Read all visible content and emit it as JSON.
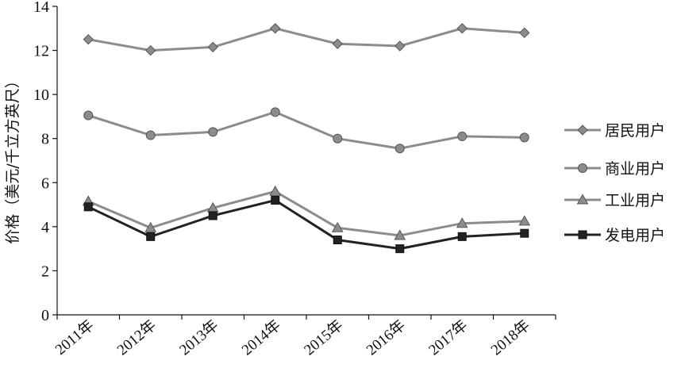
{
  "chart_data": {
    "type": "line",
    "ylabel": "价格（美元/千立方英尺）",
    "xlabel": "",
    "ylim": [
      0,
      14
    ],
    "yticks": [
      0,
      2,
      4,
      6,
      8,
      10,
      12,
      14
    ],
    "categories": [
      "2011年",
      "2012年",
      "2013年",
      "2014年",
      "2015年",
      "2016年",
      "2017年",
      "2018年"
    ],
    "grid": false,
    "legend_position": "right",
    "series": [
      {
        "name": "居民用户",
        "marker": "diamond",
        "color": "#8c8c8c",
        "values": [
          12.5,
          12.0,
          12.15,
          13.0,
          12.3,
          12.2,
          13.0,
          12.8
        ]
      },
      {
        "name": "商业用户",
        "marker": "circle",
        "color": "#8c8c8c",
        "values": [
          9.05,
          8.15,
          8.3,
          9.2,
          8.0,
          7.55,
          8.1,
          8.05
        ]
      },
      {
        "name": "工业用户",
        "marker": "triangle",
        "color": "#8c8c8c",
        "values": [
          5.15,
          3.95,
          4.85,
          5.6,
          3.95,
          3.6,
          4.15,
          4.25
        ]
      },
      {
        "name": "发电用户",
        "marker": "square",
        "color": "#222222",
        "values": [
          4.9,
          3.55,
          4.5,
          5.2,
          3.4,
          3.0,
          3.55,
          3.7
        ]
      }
    ]
  }
}
